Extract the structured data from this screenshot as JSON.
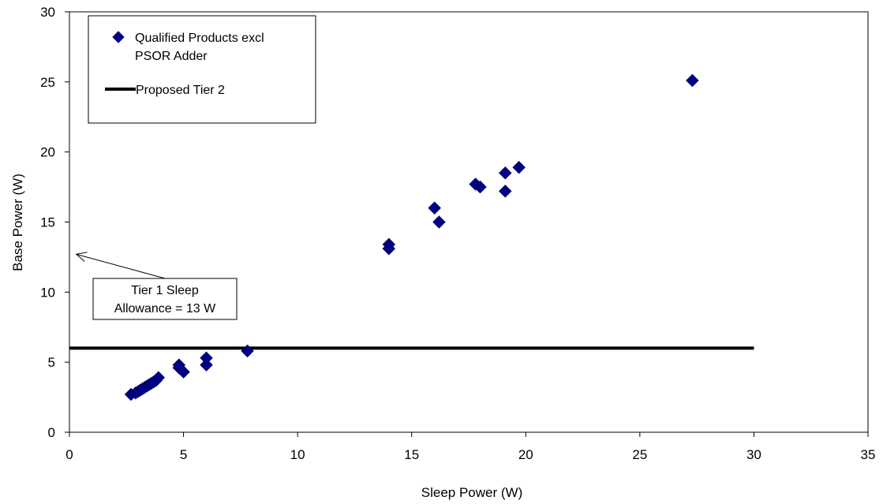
{
  "chart_data": {
    "type": "scatter",
    "title": "",
    "xlabel": "Sleep Power (W)",
    "ylabel": "Base Power (W)",
    "xlim": [
      0,
      35
    ],
    "ylim": [
      0,
      30
    ],
    "x_ticks": [
      "0",
      "5",
      "10",
      "15",
      "20",
      "25",
      "30",
      "35"
    ],
    "y_ticks": [
      "0",
      "5",
      "10",
      "15",
      "20",
      "25",
      "30"
    ],
    "grid": false,
    "legend_position": "top-left",
    "series": [
      {
        "name": "Qualified Products excl PSOR Adder",
        "kind": "scatter",
        "marker": "diamond",
        "color": "#000080",
        "points": [
          [
            2.7,
            2.7
          ],
          [
            2.9,
            2.8
          ],
          [
            3.0,
            2.9
          ],
          [
            3.1,
            3.0
          ],
          [
            3.2,
            3.1
          ],
          [
            3.3,
            3.2
          ],
          [
            3.4,
            3.3
          ],
          [
            3.5,
            3.4
          ],
          [
            3.6,
            3.5
          ],
          [
            3.7,
            3.6
          ],
          [
            3.8,
            3.7
          ],
          [
            3.9,
            3.9
          ],
          [
            4.8,
            4.6
          ],
          [
            4.8,
            4.8
          ],
          [
            5.0,
            4.3
          ],
          [
            6.0,
            4.8
          ],
          [
            6.0,
            5.3
          ],
          [
            7.8,
            5.8
          ],
          [
            14.0,
            13.1
          ],
          [
            14.0,
            13.4
          ],
          [
            16.0,
            16.0
          ],
          [
            16.2,
            15.0
          ],
          [
            17.8,
            17.7
          ],
          [
            18.0,
            17.5
          ],
          [
            19.1,
            17.2
          ],
          [
            19.1,
            18.5
          ],
          [
            19.7,
            18.9
          ],
          [
            27.3,
            25.1
          ]
        ]
      },
      {
        "name": "Proposed Tier 2",
        "kind": "line",
        "color": "#000000",
        "points": [
          [
            0,
            6
          ],
          [
            30,
            6
          ]
        ]
      }
    ],
    "legend_labels": {
      "series0_line1": "Qualified Products excl",
      "series0_line2": "PSOR Adder",
      "series1": "Proposed Tier 2"
    },
    "annotation": {
      "line1": "Tier 1 Sleep",
      "line2": "Allowance = 13 W",
      "arrow_target": [
        0.3,
        12.7
      ]
    }
  }
}
